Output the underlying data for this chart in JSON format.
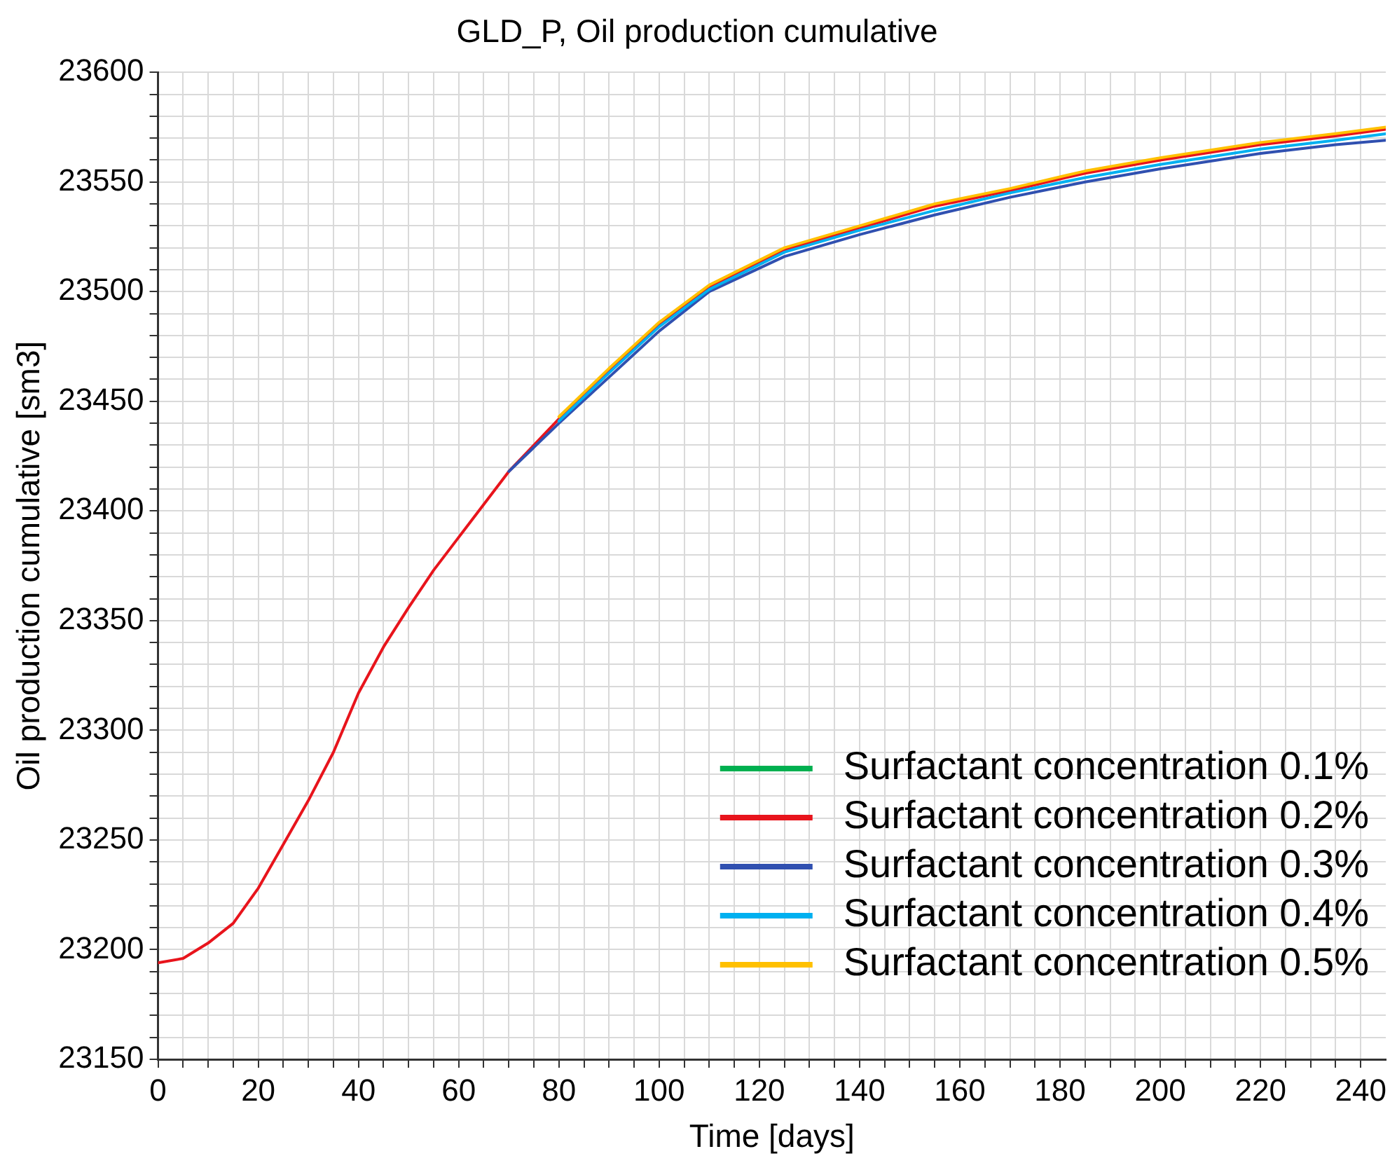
{
  "chart_data": {
    "type": "line",
    "title": "GLD_P, Oil production cumulative",
    "xlabel": "Time [days]",
    "ylabel": "Oil production cumulative [sm3]",
    "x": [
      0,
      5,
      10,
      15,
      20,
      25,
      30,
      35,
      40,
      45,
      50,
      55,
      60,
      70,
      80,
      90,
      100,
      110,
      125,
      140,
      155,
      170,
      185,
      200,
      220,
      235,
      245
    ],
    "series": [
      {
        "name": "Surfactant concentration 0.1%",
        "color": "#00b050",
        "values": [
          null,
          null,
          null,
          null,
          null,
          null,
          null,
          null,
          null,
          null,
          null,
          null,
          null,
          null,
          null,
          null,
          null,
          null,
          null,
          null,
          null,
          null,
          null,
          null,
          null,
          null,
          null
        ]
      },
      {
        "name": "Surfactant concentration 0.2%",
        "color": "#e8141c",
        "values": [
          23194,
          23196,
          23203,
          23212,
          23228,
          23248,
          23268,
          23290,
          23317,
          23338,
          23356,
          23373,
          23388,
          23418,
          23442,
          23464,
          23485,
          23502,
          23519,
          23529,
          23539,
          23546,
          23554,
          23560,
          23567,
          23571,
          23574
        ]
      },
      {
        "name": "Surfactant concentration 0.3%",
        "color": "#3050b0",
        "values": [
          null,
          null,
          null,
          null,
          null,
          null,
          null,
          null,
          null,
          null,
          null,
          null,
          null,
          23418,
          23440,
          23461,
          23482,
          23500,
          23516,
          23526,
          23535,
          23543,
          23550,
          23556,
          23563,
          23567,
          23569
        ]
      },
      {
        "name": "Surfactant concentration 0.4%",
        "color": "#00b0f0",
        "values": [
          null,
          null,
          null,
          null,
          null,
          null,
          null,
          null,
          null,
          null,
          null,
          null,
          null,
          null,
          23441,
          23463,
          23484,
          23501,
          23518,
          23528,
          23537,
          23545,
          23552,
          23558,
          23565,
          23569,
          23572
        ]
      },
      {
        "name": "Surfactant concentration 0.5%",
        "color": "#ffc000",
        "values": [
          null,
          null,
          null,
          null,
          null,
          null,
          null,
          null,
          null,
          null,
          null,
          null,
          null,
          null,
          23443,
          23465,
          23486,
          23503,
          23520,
          23530,
          23540,
          23547,
          23555,
          23561,
          23568,
          23572,
          23575
        ]
      }
    ],
    "xlim": [
      0,
      245
    ],
    "xticks": [
      0,
      {
        "value": 5,
        "label": null
      },
      {
        "value": 10,
        "label": null
      },
      {
        "value": 15,
        "label": null
      },
      20,
      {
        "value": 25,
        "label": null
      },
      {
        "value": 30,
        "label": null
      },
      {
        "value": 35,
        "label": null
      },
      40,
      {
        "value": 45,
        "label": null
      },
      {
        "value": 50,
        "label": null
      },
      {
        "value": 55,
        "label": null
      },
      60,
      {
        "value": 65,
        "label": null
      },
      {
        "value": 70,
        "label": null
      },
      {
        "value": 75,
        "label": null
      },
      80,
      {
        "value": 85,
        "label": null
      },
      {
        "value": 90,
        "label": null
      },
      {
        "value": 95,
        "label": null
      },
      100,
      {
        "value": 105,
        "label": null
      },
      {
        "value": 110,
        "label": null
      },
      {
        "value": 115,
        "label": null
      },
      120,
      {
        "value": 125,
        "label": null
      },
      {
        "value": 130,
        "label": null
      },
      {
        "value": 135,
        "label": null
      },
      140,
      {
        "value": 145,
        "label": null
      },
      {
        "value": 150,
        "label": null
      },
      {
        "value": 155,
        "label": null
      },
      160,
      {
        "value": 165,
        "label": null
      },
      {
        "value": 170,
        "label": null
      },
      {
        "value": 175,
        "label": null
      },
      180,
      {
        "value": 185,
        "label": null
      },
      {
        "value": 190,
        "label": null
      },
      {
        "value": 195,
        "label": null
      },
      200,
      {
        "value": 205,
        "label": null
      },
      {
        "value": 210,
        "label": null
      },
      {
        "value": 215,
        "label": null
      },
      220,
      {
        "value": 225,
        "label": null
      },
      {
        "value": 230,
        "label": null
      },
      {
        "value": 235,
        "label": null
      },
      240
    ],
    "ylim": [
      23150,
      23600
    ],
    "yticks": [
      23150,
      {
        "value": 23160,
        "label": null
      },
      {
        "value": 23170,
        "label": null
      },
      {
        "value": 23180,
        "label": null
      },
      {
        "value": 23190,
        "label": null
      },
      23200,
      {
        "value": 23210,
        "label": null
      },
      {
        "value": 23220,
        "label": null
      },
      {
        "value": 23230,
        "label": null
      },
      {
        "value": 23240,
        "label": null
      },
      23250,
      {
        "value": 23260,
        "label": null
      },
      {
        "value": 23270,
        "label": null
      },
      {
        "value": 23280,
        "label": null
      },
      {
        "value": 23290,
        "label": null
      },
      23300,
      {
        "value": 23310,
        "label": null
      },
      {
        "value": 23320,
        "label": null
      },
      {
        "value": 23330,
        "label": null
      },
      {
        "value": 23340,
        "label": null
      },
      23350,
      {
        "value": 23360,
        "label": null
      },
      {
        "value": 23370,
        "label": null
      },
      {
        "value": 23380,
        "label": null
      },
      {
        "value": 23390,
        "label": null
      },
      23400,
      {
        "value": 23410,
        "label": null
      },
      {
        "value": 23420,
        "label": null
      },
      {
        "value": 23430,
        "label": null
      },
      {
        "value": 23440,
        "label": null
      },
      23450,
      {
        "value": 23460,
        "label": null
      },
      {
        "value": 23470,
        "label": null
      },
      {
        "value": 23480,
        "label": null
      },
      {
        "value": 23490,
        "label": null
      },
      23500,
      {
        "value": 23510,
        "label": null
      },
      {
        "value": 23520,
        "label": null
      },
      {
        "value": 23530,
        "label": null
      },
      {
        "value": 23540,
        "label": null
      },
      23550,
      {
        "value": 23560,
        "label": null
      },
      {
        "value": 23570,
        "label": null
      },
      {
        "value": 23580,
        "label": null
      },
      {
        "value": 23590,
        "label": null
      },
      23600
    ],
    "grid": true,
    "legend": "bottom right",
    "marker": "none",
    "line_style": "solid"
  }
}
